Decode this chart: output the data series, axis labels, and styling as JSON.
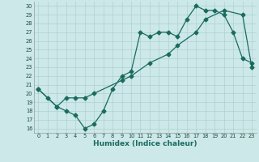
{
  "title": "",
  "xlabel": "Humidex (Indice chaleur)",
  "ylabel": "",
  "background_color": "#cce8e8",
  "grid_color": "#b0d0d0",
  "line_color": "#1a6b5e",
  "tick_color": "#1a4a40",
  "xlim": [
    -0.5,
    23.5
  ],
  "ylim": [
    15.5,
    30.5
  ],
  "xticks": [
    0,
    1,
    2,
    3,
    4,
    5,
    6,
    7,
    8,
    9,
    10,
    11,
    12,
    13,
    14,
    15,
    16,
    17,
    18,
    19,
    20,
    21,
    22,
    23
  ],
  "yticks": [
    16,
    17,
    18,
    19,
    20,
    21,
    22,
    23,
    24,
    25,
    26,
    27,
    28,
    29,
    30
  ],
  "line1_x": [
    0,
    1,
    2,
    3,
    4,
    5,
    6,
    7,
    8,
    9,
    10,
    11,
    12,
    13,
    14,
    15,
    16,
    17,
    18,
    19,
    20,
    21,
    22,
    23
  ],
  "line1_y": [
    20.5,
    19.5,
    18.5,
    18.0,
    17.5,
    16.0,
    16.5,
    18.0,
    20.5,
    22.0,
    22.5,
    27.0,
    26.5,
    27.0,
    27.0,
    26.5,
    28.5,
    30.0,
    29.5,
    29.5,
    29.0,
    27.0,
    24.0,
    23.5
  ],
  "line2_x": [
    0,
    2,
    3,
    4,
    5,
    6,
    9,
    10,
    12,
    14,
    15,
    17,
    18,
    20,
    22,
    23
  ],
  "line2_y": [
    20.5,
    18.5,
    19.5,
    19.5,
    19.5,
    20.0,
    21.5,
    22.0,
    23.5,
    24.5,
    25.5,
    27.0,
    28.5,
    29.5,
    29.0,
    23.0
  ],
  "marker_size": 2.5,
  "linewidth": 0.9,
  "xlabel_fontsize": 6.5,
  "tick_fontsize": 4.8
}
